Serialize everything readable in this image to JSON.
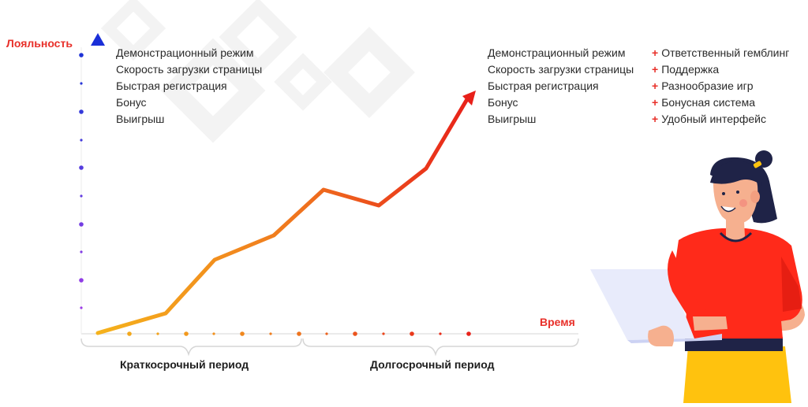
{
  "y_axis_label": "Лояльность",
  "x_axis_label": "Время",
  "short_term_list": [
    "Демонстрационный режим",
    "Скорость загрузки страницы",
    "Быстрая регистрация",
    "Бонус",
    "Выигрыш"
  ],
  "long_term_list": [
    "Демонстрационный режим",
    "Скорость загрузки страницы",
    "Быстрая регистрация",
    "Бонус",
    "Выигрыш"
  ],
  "long_term_extras": [
    "Ответственный гемблинг",
    "Поддержка",
    "Разнообразие игр",
    "Бонусная система",
    "Удобный интерфейс"
  ],
  "plus_sign": "+",
  "periods": {
    "short": "Краткосрочный период",
    "long": "Долгосрочный период"
  },
  "colors": {
    "accent_red": "#e8302a",
    "axis_top": "#1a2fd8",
    "axis_bottom": "#a23be8",
    "curve_start": "#f5b21c",
    "curve_mid": "#f07a1e",
    "curve_end": "#e8201a"
  },
  "icons": {
    "person": "woman-with-laptop-illustration",
    "background": "rotated-square-outline-decor"
  }
}
